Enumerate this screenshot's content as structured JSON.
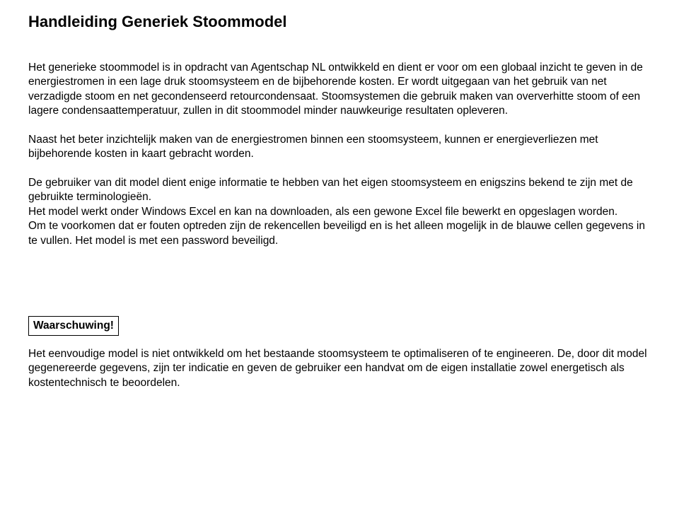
{
  "title": "Handleiding Generiek Stoommodel",
  "para1": "Het generieke stoommodel is in opdracht van Agentschap NL ontwikkeld en dient er voor om een globaal inzicht te geven in de energiestromen in een lage druk stoomsysteem en de bijbehorende kosten. Er wordt uitgegaan van het gebruik van net verzadigde stoom en net gecondenseerd retourcondensaat. Stoomsystemen die gebruik maken van oververhitte stoom of een lagere condensaattemperatuur, zullen in dit stoommodel minder nauwkeurige resultaten opleveren.",
  "para2": "Naast het beter inzichtelijk maken van de energiestromen binnen een stoomsysteem, kunnen er energieverliezen met bijbehorende kosten in kaart gebracht worden.",
  "para3a": "De gebruiker van dit model dient enige informatie te hebben van het eigen stoomsysteem en enigszins bekend te zijn met de gebruikte terminologieën.",
  "para3b": "Het model werkt onder Windows Excel en kan na downloaden, als een gewone Excel file bewerkt en opgeslagen worden.",
  "para3c": "Om te voorkomen dat er fouten optreden zijn de rekencellen beveiligd en is het alleen mogelijk in de blauwe cellen gegevens in te vullen. Het model is met een password beveiligd.",
  "warning_title": "Waarschuwing!",
  "warning_text": "Het eenvoudige model is niet ontwikkeld om het bestaande stoomsysteem te optimaliseren of te engineeren. De, door dit model gegenereerde gegevens, zijn ter indicatie en geven de gebruiker een handvat om de eigen installatie zowel energetisch als kostentechnisch te beoordelen."
}
